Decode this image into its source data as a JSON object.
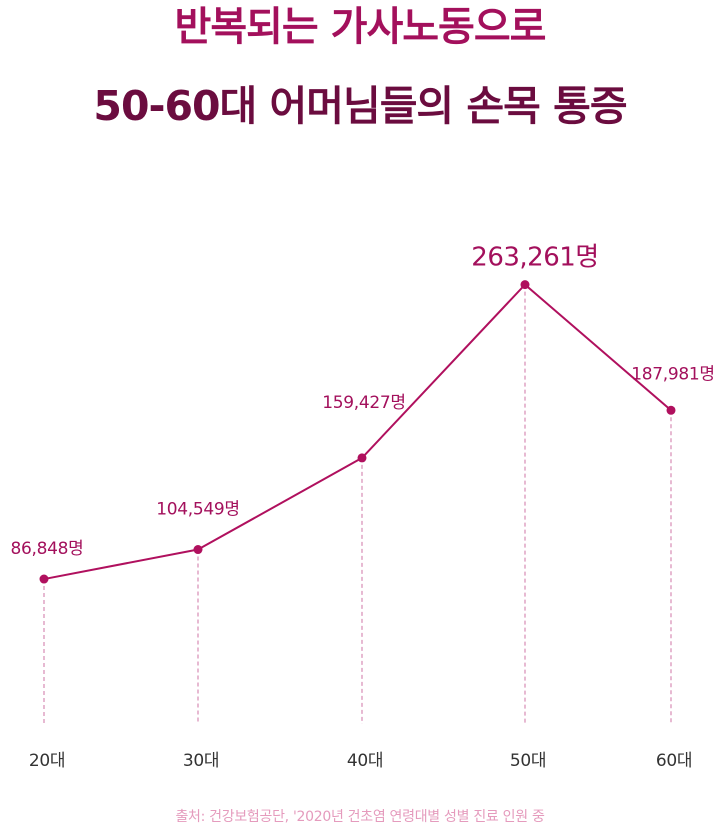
{
  "title": {
    "line1": "반복되는 가사노동으로",
    "line2": "50-60대 어머님들의 손목 통증"
  },
  "source": "출처: 건강보험공단, '2020년 건초염 연령대별 성별 진료 인원 중",
  "colors": {
    "title": "#a3105c",
    "title_dark": "#6b0c3f",
    "line": "#b0105e",
    "dashed": "#d78bb4",
    "label": "#a3105c",
    "axis_text": "#333333",
    "source": "#e59bbd"
  },
  "chart_data": {
    "type": "line",
    "title": "반복되는 가사노동으로 50-60대 어머님들의 손목 통증",
    "xlabel": "",
    "ylabel": "",
    "grid": false,
    "categories": [
      "20대",
      "30대",
      "40대",
      "50대",
      "60대"
    ],
    "values": [
      86848,
      104549,
      159427,
      263261,
      187981
    ],
    "labels": [
      "86,848명",
      "104,549명",
      "159,427명",
      "263,261명",
      "187,981명"
    ],
    "ylim": [
      0,
      290000
    ],
    "highlight_index": 3
  }
}
